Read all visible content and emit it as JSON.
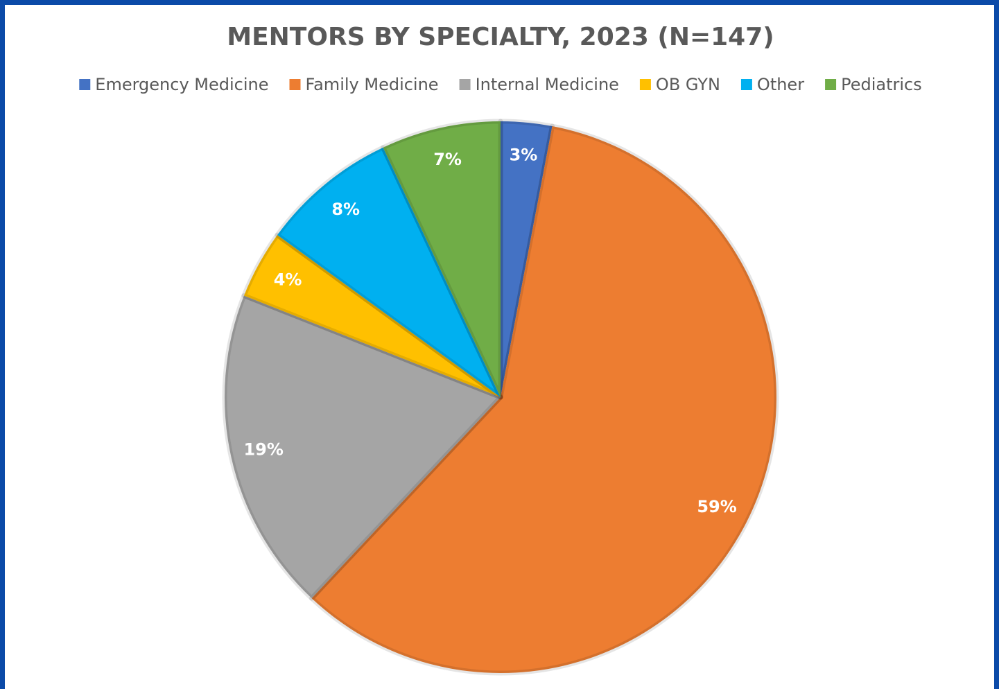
{
  "chart_data": {
    "type": "pie",
    "title": "MENTORS BY SPECIALTY, 2023 (N=147)",
    "categories": [
      "Emergency Medicine",
      "Family Medicine",
      "Internal Medicine",
      "OB GYN",
      "Other",
      "Pediatrics"
    ],
    "values": [
      3,
      59,
      19,
      4,
      8,
      7
    ],
    "value_labels": [
      "3%",
      "59%",
      "19%",
      "4%",
      "8%",
      "7%"
    ],
    "colors": [
      "#4472c4",
      "#ed7d31",
      "#a5a5a5",
      "#ffc000",
      "#00b0f0",
      "#70ad47"
    ],
    "legend": "top"
  }
}
